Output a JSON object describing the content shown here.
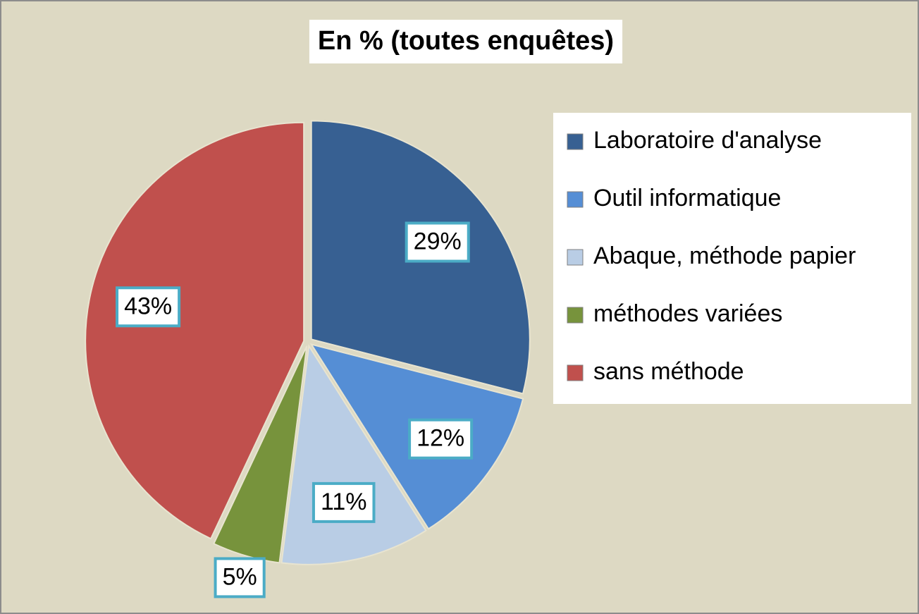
{
  "chart_data": {
    "type": "pie",
    "title": "En % (toutes enquêtes)",
    "categories": [
      "Laboratoire d'analyse",
      "Outil informatique",
      "Abaque, méthode papier",
      "méthodes variées",
      "sans méthode"
    ],
    "values": [
      29,
      12,
      11,
      5,
      43
    ],
    "value_labels": [
      "29%",
      "12%",
      "11%",
      "5%",
      "43%"
    ],
    "colors": [
      "#376092",
      "#558ed5",
      "#b9cde5",
      "#77933c",
      "#c0504d"
    ],
    "legend": "right"
  }
}
